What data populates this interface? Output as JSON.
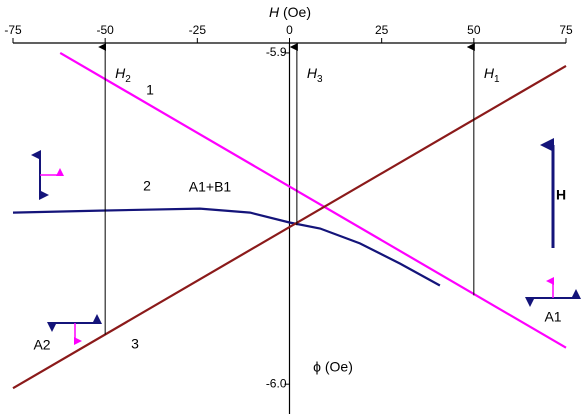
{
  "chart_data": {
    "type": "line",
    "xlabel_var": "H",
    "xlabel_unit": "(Oe)",
    "ylabel": "ϕ (Oe)",
    "xlim": [
      -75,
      75
    ],
    "xticks": [
      -75,
      -50,
      -25,
      0,
      25,
      50,
      75
    ],
    "ylim": [
      -6.009,
      -5.897
    ],
    "yticks": [
      -5.9,
      {
        "value": -6.0,
        "label": "-6.0"
      }
    ],
    "series": [
      {
        "name": "1",
        "color": "#ff00ff",
        "x": [
          -62.2,
          75
        ],
        "values": [
          -5.9,
          -5.989
        ]
      },
      {
        "name": "2",
        "color": "#14147a",
        "x": [
          -75,
          -51.4,
          -24.3,
          -10.7,
          0,
          8.3,
          19.1,
          30,
          40.8
        ],
        "values": [
          -5.9482,
          -5.9476,
          -5.947,
          -5.9482,
          -5.9512,
          -5.953,
          -5.9575,
          -5.9636,
          -5.9702
        ]
      },
      {
        "name": "3",
        "color": "#8b1a1a",
        "x": [
          -75,
          75
        ],
        "values": [
          -6.0012,
          -5.9039
        ]
      }
    ],
    "markers": [
      {
        "x": -50,
        "y": -5.985,
        "label": "H",
        "sub": "2"
      },
      {
        "x": 2,
        "y": -5.952,
        "label": "H",
        "sub": "3"
      },
      {
        "x": 50,
        "y": -5.9732,
        "label": "H",
        "sub": "1"
      }
    ],
    "annotations": [
      "A1+B1",
      "A2",
      "A1",
      "H"
    ]
  }
}
